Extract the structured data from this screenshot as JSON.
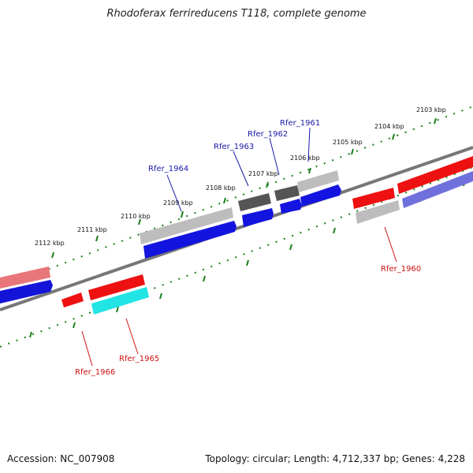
{
  "title": "Rhodoferax ferrireducens T118, complete genome",
  "footer": {
    "accession": "Accession: NC_007908",
    "topology": "Topology: circular; Length: 4,712,337 bp; Genes: 4,228"
  },
  "ruler_labels": [
    "2103 kbp",
    "2104 kbp",
    "2105 kbp",
    "2106 kbp",
    "2107 kbp",
    "2108 kbp",
    "2109 kbp",
    "2110 kbp",
    "2111 kbp",
    "2112 kbp"
  ],
  "genes_top": [
    "Rfer_1961",
    "Rfer_1962",
    "Rfer_1963",
    "Rfer_1964"
  ],
  "genes_bottom": [
    "Rfer_1960",
    "Rfer_1965",
    "Rfer_1966"
  ],
  "colors": {
    "ruler": "#1a7f1a",
    "label_blue": "#1a1aa8",
    "label_red": "#cc1111",
    "backbone": "#777777"
  }
}
